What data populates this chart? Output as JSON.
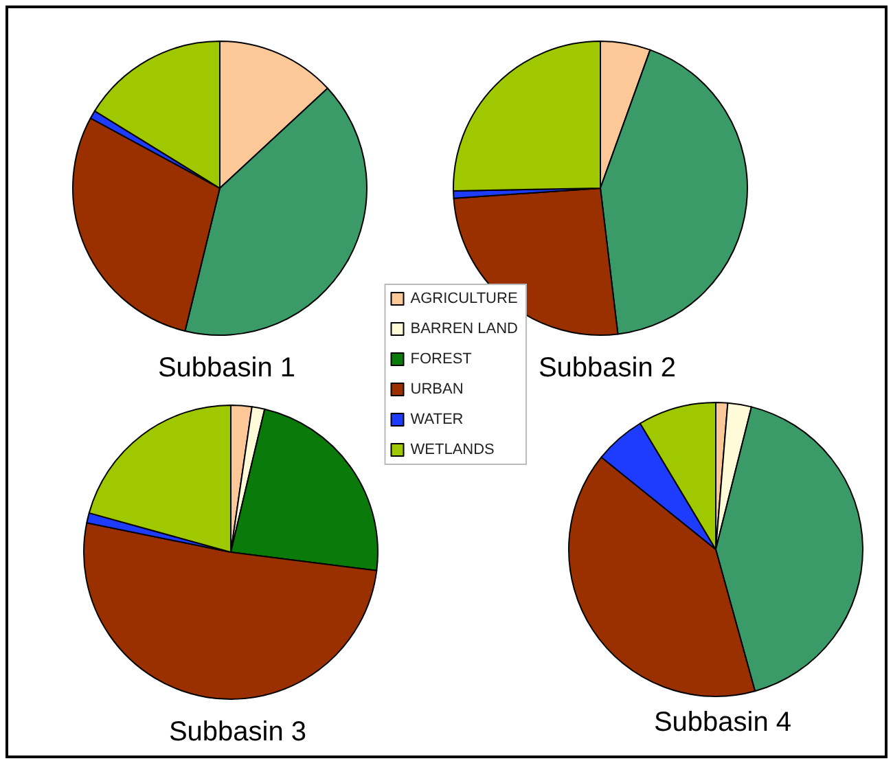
{
  "chart_data": [
    {
      "type": "pie",
      "title": "Subbasin 1",
      "categories": [
        null,
        null,
        null,
        null,
        null
      ],
      "values": [
        13.1,
        40.7,
        29.1,
        0.9,
        16.2
      ],
      "colors": [
        "#fcc898",
        "#3a9a68",
        "#9a3000",
        "#1e3cff",
        "#a0c800"
      ]
    },
    {
      "type": "pie",
      "title": "Subbasin 2",
      "categories": [
        null,
        null,
        null,
        null,
        null
      ],
      "values": [
        5.5,
        42.6,
        25.8,
        0.8,
        25.3
      ],
      "colors": [
        "#fcc898",
        "#3a9a68",
        "#9a3000",
        "#1e3cff",
        "#a0c800"
      ]
    },
    {
      "type": "pie",
      "title": "Subbasin 3",
      "categories": [
        "AGRICULTURE",
        "BARREN LAND",
        "FOREST",
        "URBAN",
        "WATER",
        "WETLANDS"
      ],
      "values": [
        2.3,
        1.4,
        23.3,
        51.2,
        1.1,
        20.7
      ],
      "colors": [
        "#fcc898",
        "#fffbd8",
        "#0a7a0a",
        "#9a3000",
        "#1e3cff",
        "#a0c800"
      ],
      "legend": "top right"
    },
    {
      "type": "pie",
      "title": "Subbasin 4",
      "categories": [
        null,
        null,
        null,
        null,
        null,
        null
      ],
      "values": [
        1.3,
        2.6,
        41.8,
        40.1,
        5.6,
        8.6
      ],
      "colors": [
        "#fcc898",
        "#fffbd8",
        "#3a9a68",
        "#9a3000",
        "#1e3cff",
        "#a0c800"
      ]
    }
  ]
}
